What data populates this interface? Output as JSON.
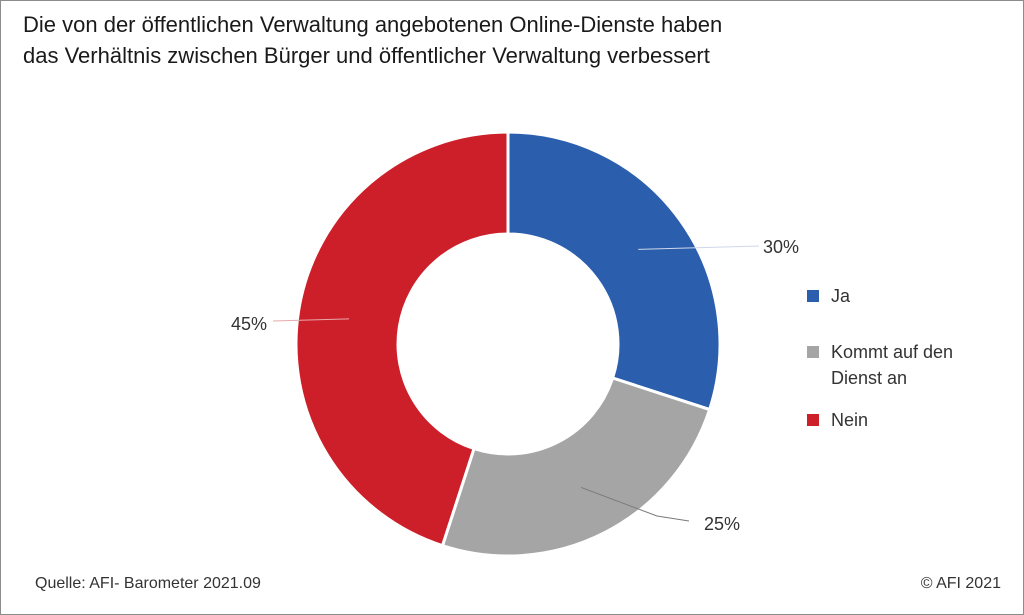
{
  "chart_data": {
    "type": "pie",
    "title_lines": [
      "Die von der öffentlichen Verwaltung angebotenen Online-Dienste haben",
      "das Verhältnis zwischen Bürger und öffentlicher Verwaltung verbessert"
    ],
    "slices": [
      {
        "label": "Ja",
        "value": 30,
        "value_label": "30%",
        "color": "#2b5ead"
      },
      {
        "label": "Kommt auf den Dienst an",
        "legend_lines": [
          "Kommt auf den",
          "Dienst an"
        ],
        "value": 25,
        "value_label": "25%",
        "color": "#a5a5a5"
      },
      {
        "label": "Nein",
        "value": 45,
        "value_label": "45%",
        "color": "#cc1f29"
      }
    ],
    "style": "donut",
    "legend_position": "right"
  },
  "source": "Quelle: AFI- Barometer 2021.09",
  "copyright": "© AFI 2021"
}
